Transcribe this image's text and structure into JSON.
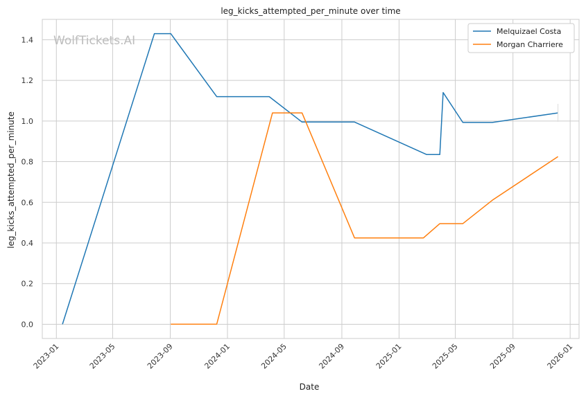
{
  "chart_data": {
    "type": "line",
    "title": "leg_kicks_attempted_per_minute over time",
    "xlabel": "Date",
    "ylabel": "leg_kicks_attempted_per_minute",
    "watermark": "WolfTickets.AI",
    "xlim": [
      "2022-12-02",
      "2026-01-20"
    ],
    "ylim": [
      -0.07,
      1.5
    ],
    "x_ticks": [
      "2023-01",
      "2023-05",
      "2023-09",
      "2024-01",
      "2024-05",
      "2024-09",
      "2025-01",
      "2025-05",
      "2025-09",
      "2026-01"
    ],
    "y_ticks": [
      "0.0",
      "0.2",
      "0.4",
      "0.6",
      "0.8",
      "1.0",
      "1.2",
      "1.4"
    ],
    "grid": true,
    "legend_position": "top-right",
    "series": [
      {
        "name": "Melquizael Costa",
        "color": "#1f77b4",
        "points": [
          {
            "x": "2023-01-14",
            "y": 0.0
          },
          {
            "x": "2023-07-29",
            "y": 1.43
          },
          {
            "x": "2023-09-02",
            "y": 1.43
          },
          {
            "x": "2023-12-09",
            "y": 1.12
          },
          {
            "x": "2024-03-30",
            "y": 1.12
          },
          {
            "x": "2024-06-08",
            "y": 0.995
          },
          {
            "x": "2024-09-28",
            "y": 0.995
          },
          {
            "x": "2025-03-01",
            "y": 0.835
          },
          {
            "x": "2025-03-29",
            "y": 0.835
          },
          {
            "x": "2025-04-05",
            "y": 1.14
          },
          {
            "x": "2025-05-17",
            "y": 0.993
          },
          {
            "x": "2025-07-19",
            "y": 0.993
          },
          {
            "x": "2025-12-06",
            "y": 1.04
          }
        ]
      },
      {
        "name": "Morgan Charriere",
        "color": "#ff7f0e",
        "points": [
          {
            "x": "2023-09-02",
            "y": 0.0
          },
          {
            "x": "2023-12-09",
            "y": 0.0
          },
          {
            "x": "2024-04-06",
            "y": 1.04
          },
          {
            "x": "2024-06-08",
            "y": 1.04
          },
          {
            "x": "2024-09-28",
            "y": 0.425
          },
          {
            "x": "2025-02-22",
            "y": 0.425
          },
          {
            "x": "2025-03-29",
            "y": 0.495
          },
          {
            "x": "2025-05-17",
            "y": 0.495
          },
          {
            "x": "2025-07-19",
            "y": 0.61
          },
          {
            "x": "2025-12-06",
            "y": 0.825
          }
        ]
      }
    ]
  }
}
